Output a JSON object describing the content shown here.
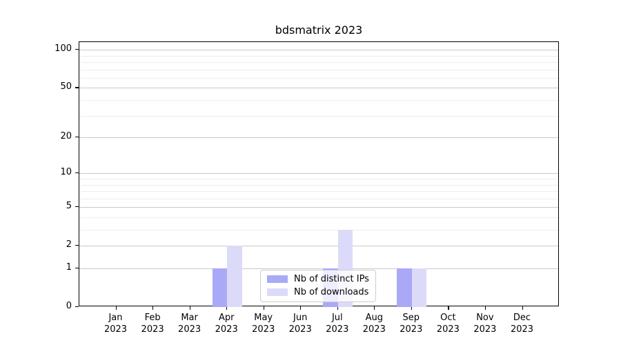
{
  "figure": {
    "background": "#ffffff"
  },
  "chart_data": {
    "type": "bar",
    "title": "bdsmatrix 2023",
    "categories": [
      "Jan 2023",
      "Feb 2023",
      "Mar 2023",
      "Apr 2023",
      "May 2023",
      "Jun 2023",
      "Jul 2023",
      "Aug 2023",
      "Sep 2023",
      "Oct 2023",
      "Nov 2023",
      "Dec 2023"
    ],
    "series": [
      {
        "name": "Nb of distinct IPs",
        "color": "#a9a9f7",
        "values": [
          0,
          0,
          0,
          1,
          0,
          0,
          1,
          0,
          1,
          0,
          0,
          0
        ]
      },
      {
        "name": "Nb of downloads",
        "color": "#dbdbf9",
        "values": [
          0,
          0,
          0,
          2,
          0,
          0,
          3,
          0,
          1,
          0,
          0,
          0
        ]
      }
    ],
    "xlabel": "",
    "ylabel": "",
    "yscale": "log1p",
    "ylim": [
      0,
      115
    ],
    "yticks": [
      0,
      1,
      2,
      5,
      10,
      20,
      50,
      100
    ],
    "yticks_minor": [
      3,
      4,
      6,
      7,
      8,
      9,
      30,
      40,
      60,
      70,
      80,
      90
    ],
    "grid": "horizontal-only",
    "legend_position": "lower center",
    "colors": {
      "axis": "#000000",
      "grid_major": "#c8c8c8",
      "grid_minor": "#ededed",
      "text": "#000000"
    }
  }
}
